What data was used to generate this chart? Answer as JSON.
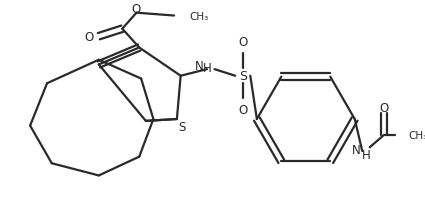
{
  "bg_color": "#ffffff",
  "line_color": "#2a2a2a",
  "line_width": 1.6,
  "figsize": [
    4.25,
    2.07
  ],
  "dpi": 100,
  "xlim": [
    0,
    425
  ],
  "ylim": [
    0,
    207
  ]
}
